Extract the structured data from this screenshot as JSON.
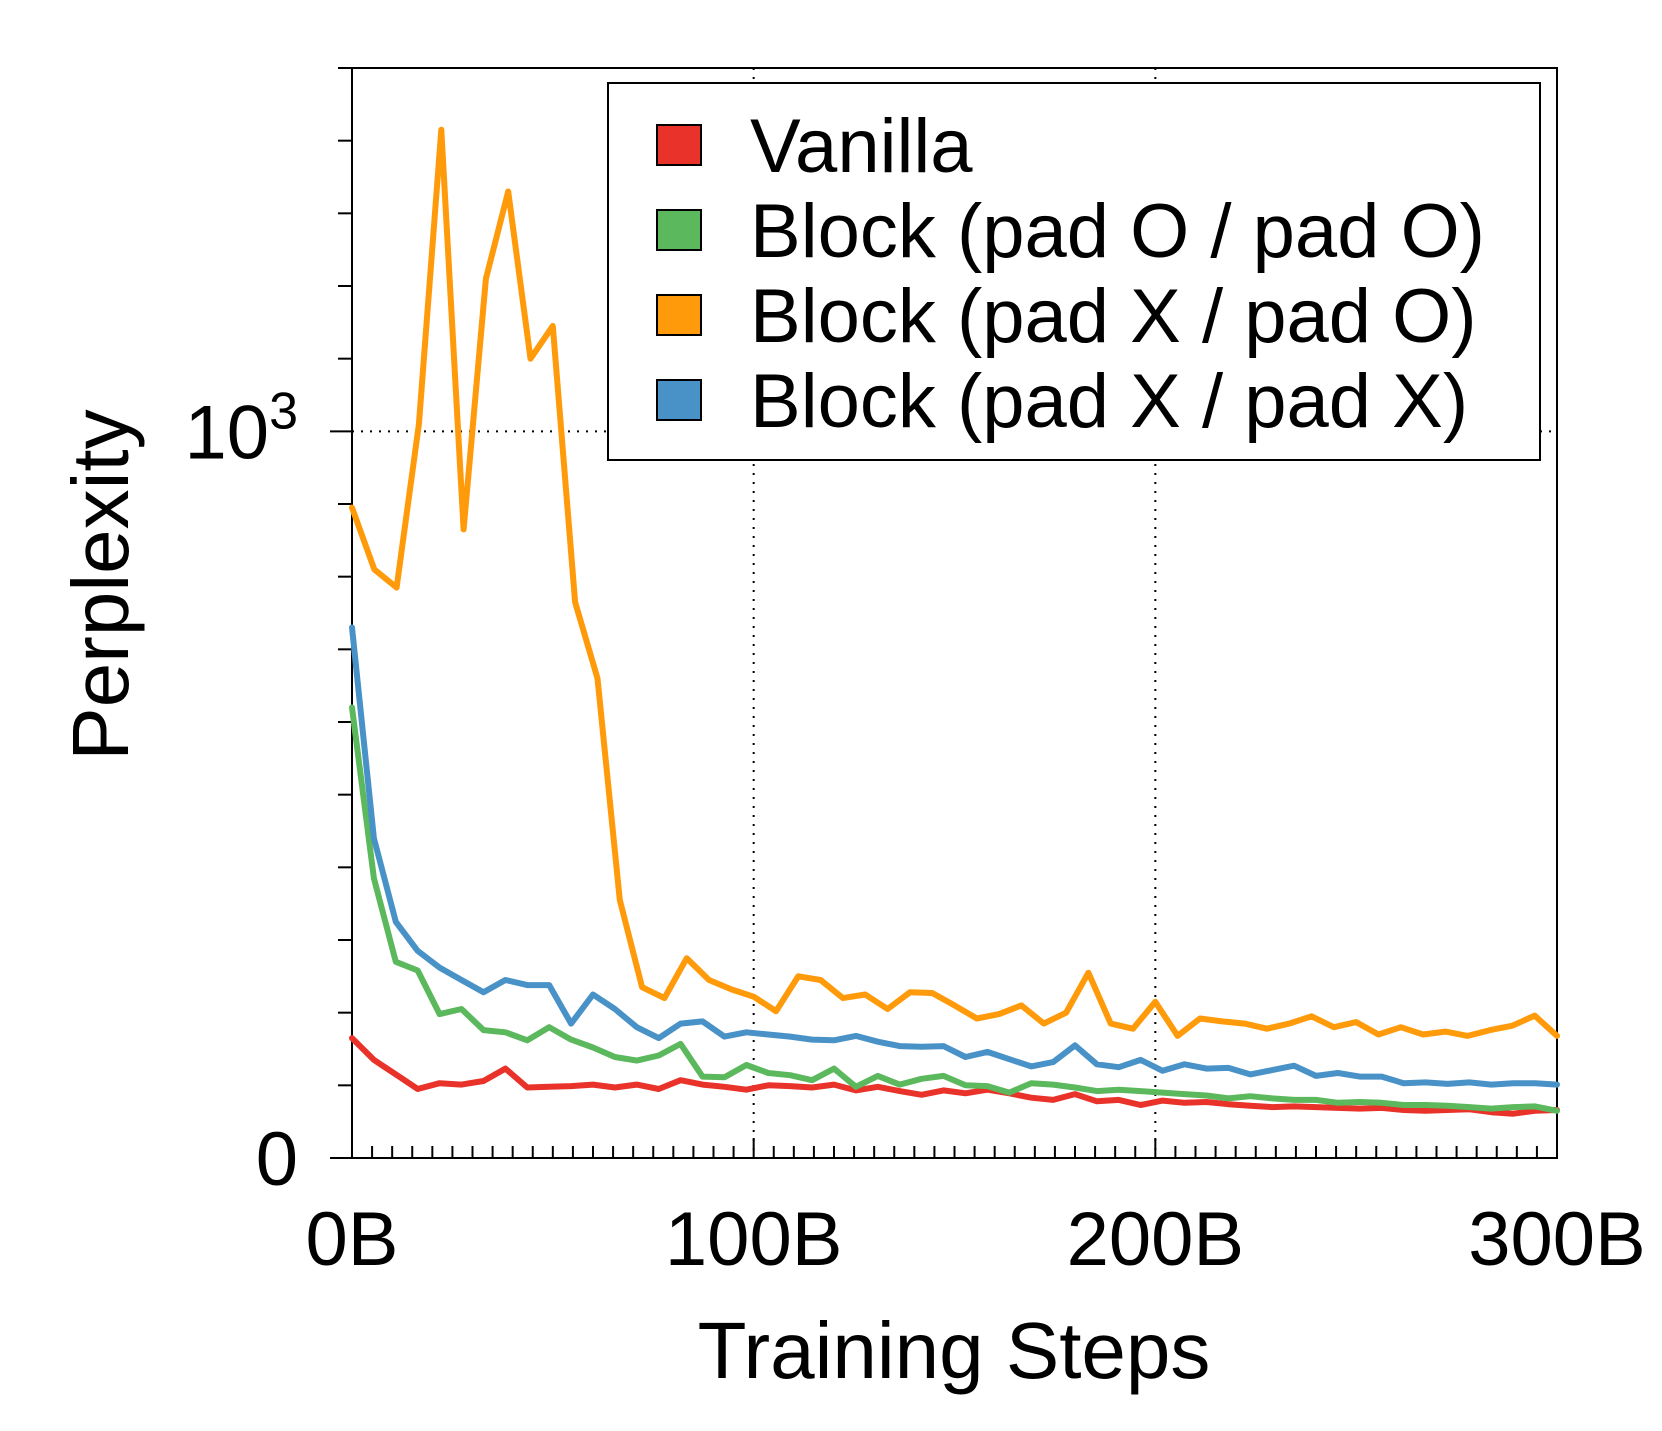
{
  "chart_data": {
    "type": "line",
    "xlabel": "Training Steps",
    "ylabel": "Perplexity",
    "x_ticks": [
      {
        "value": 0,
        "label": "0B"
      },
      {
        "value": 100,
        "label": "100B"
      },
      {
        "value": 200,
        "label": "200B"
      },
      {
        "value": 300,
        "label": "300B"
      }
    ],
    "y_ticks": [
      {
        "value": 0,
        "label": "0",
        "sup": ""
      },
      {
        "value": 1000,
        "label": "10",
        "sup": "3"
      }
    ],
    "xlim": [
      0,
      300
    ],
    "ylim": [
      0,
      1500
    ],
    "grid": "dotted at x = 100B, 200B and y = 10^3",
    "legend_position": "top-right",
    "series": [
      {
        "name": "Vanilla",
        "color": "#e8322a",
        "values": [
          165,
          135,
          115,
          95,
          103,
          101,
          106,
          123,
          97,
          98,
          99,
          101,
          97,
          101,
          95,
          107,
          101,
          98,
          94,
          100,
          99,
          97,
          101,
          93,
          98,
          92,
          87,
          93,
          89,
          94,
          89,
          83,
          80,
          88,
          78,
          80,
          73,
          79,
          76,
          77,
          74,
          72,
          70,
          71,
          70,
          69,
          68,
          69,
          66,
          65,
          66,
          67,
          63,
          61,
          65,
          66
        ]
      },
      {
        "name": "Block (pad O / pad O)",
        "color": "#5cb85c",
        "values": [
          620,
          385,
          270,
          258,
          198,
          205,
          176,
          173,
          162,
          180,
          163,
          152,
          139,
          134,
          141,
          157,
          112,
          111,
          128,
          117,
          114,
          107,
          123,
          98,
          113,
          101,
          109,
          113,
          100,
          99,
          90,
          103,
          101,
          97,
          92,
          94,
          92,
          90,
          88,
          86,
          82,
          85,
          82,
          80,
          80,
          76,
          77,
          76,
          73,
          73,
          72,
          70,
          68,
          70,
          71,
          65
        ]
      },
      {
        "name": "Block (pad X / pad O)",
        "color": "#ff9a0a",
        "values": [
          895,
          810,
          785,
          1010,
          1415,
          865,
          1210,
          1330,
          1100,
          1145,
          765,
          660,
          355,
          235,
          220,
          275,
          245,
          232,
          222,
          202,
          250,
          245,
          220,
          225,
          205,
          228,
          227,
          210,
          192,
          198,
          210,
          185,
          200,
          255,
          185,
          178,
          215,
          168,
          192,
          188,
          185,
          178,
          185,
          195,
          180,
          187,
          170,
          180,
          170,
          174,
          168,
          176,
          182,
          196,
          168
        ]
      },
      {
        "name": "Block (pad X / pad X)",
        "color": "#4892c8",
        "values": [
          730,
          440,
          325,
          285,
          262,
          245,
          228,
          245,
          238,
          238,
          185,
          225,
          205,
          180,
          165,
          185,
          188,
          167,
          173,
          170,
          167,
          163,
          162,
          168,
          160,
          154,
          153,
          154,
          139,
          146,
          136,
          126,
          132,
          155,
          129,
          125,
          135,
          120,
          129,
          123,
          124,
          115,
          121,
          127,
          113,
          117,
          112,
          112,
          103,
          104,
          102,
          104,
          101,
          103,
          103,
          101
        ]
      }
    ]
  }
}
